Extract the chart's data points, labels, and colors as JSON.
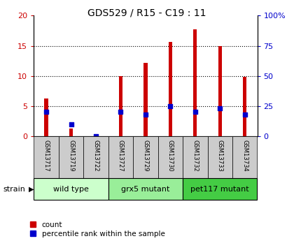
{
  "title": "GDS529 / R15 - C19 : 11",
  "samples": [
    "GSM13717",
    "GSM13719",
    "GSM13722",
    "GSM13727",
    "GSM13729",
    "GSM13730",
    "GSM13732",
    "GSM13733",
    "GSM13734"
  ],
  "counts": [
    6.3,
    1.3,
    0,
    10.0,
    12.2,
    15.7,
    17.7,
    15.0,
    9.8
  ],
  "percentiles": [
    20,
    10,
    0,
    20,
    18,
    25,
    20,
    23,
    18
  ],
  "groups": [
    {
      "label": "wild type",
      "start": 0,
      "end": 3,
      "color": "#ccffcc"
    },
    {
      "label": "grx5 mutant",
      "start": 3,
      "end": 6,
      "color": "#99ee99"
    },
    {
      "label": "pet117 mutant",
      "start": 6,
      "end": 9,
      "color": "#44cc44"
    }
  ],
  "bar_color": "#cc0000",
  "dot_color": "#0000cc",
  "left_ylim": [
    0,
    20
  ],
  "right_ylim": [
    0,
    100
  ],
  "left_yticks": [
    0,
    5,
    10,
    15,
    20
  ],
  "right_yticks": [
    0,
    25,
    50,
    75,
    100
  ],
  "right_yticklabels": [
    "0",
    "25",
    "50",
    "75",
    "100%"
  ],
  "tick_color_left": "#cc0000",
  "tick_color_right": "#0000cc",
  "strain_label": "strain",
  "legend_count": "count",
  "legend_pct": "percentile rank within the sample",
  "xlabel_area_color": "#cccccc",
  "bar_width": 0.15
}
